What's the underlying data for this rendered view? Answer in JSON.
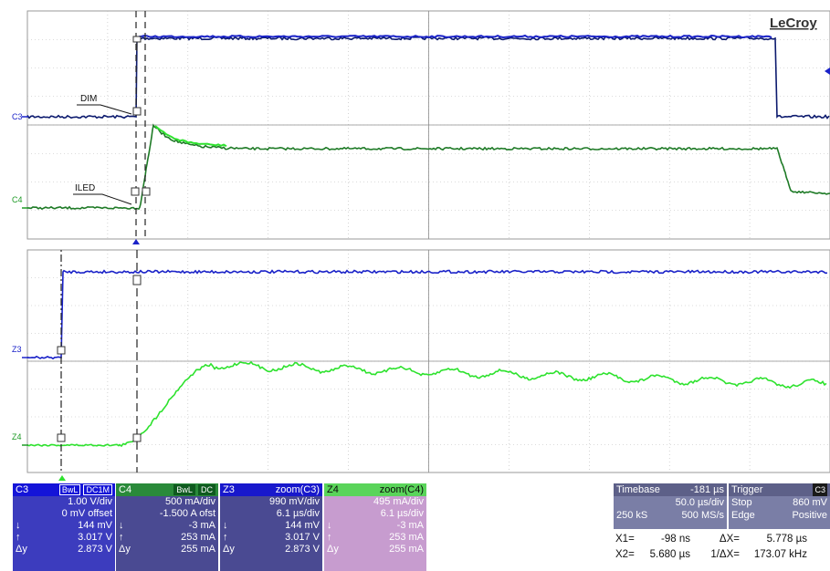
{
  "brand": "LeCroy",
  "colors": {
    "ch3": "#1a22c8",
    "ch3_dark": "#0c1a6e",
    "ch4": "#1e7a26",
    "ch4_light": "#2ee22e",
    "grid": "#b8b8b8"
  },
  "traces": {
    "c3_label": "C3",
    "c4_label": "C4",
    "z3_label": "Z3",
    "z4_label": "Z4",
    "dim_label": "DIM",
    "iled_label": "ILED"
  },
  "channels": [
    {
      "name": "C3",
      "badges": [
        "BwL",
        "DC1M"
      ],
      "scale": "1.00 V/div",
      "offset": "0 mV offset",
      "rows": [
        {
          "sym": "↓",
          "val": "144 mV"
        },
        {
          "sym": "↑",
          "val": "3.017 V"
        },
        {
          "sym": "Δy",
          "val": "2.873 V"
        }
      ]
    },
    {
      "name": "C4",
      "badges": [
        "BwL",
        "DC"
      ],
      "scale": "500 mA/div",
      "offset": "-1.500 A ofst",
      "rows": [
        {
          "sym": "↓",
          "val": "-3 mA"
        },
        {
          "sym": "↑",
          "val": "253 mA"
        },
        {
          "sym": "Δy",
          "val": "255 mA"
        }
      ]
    },
    {
      "name": "Z3",
      "zoom": "zoom(C3)",
      "scale": "990 mV/div",
      "offset": "6.1 µs/div",
      "rows": [
        {
          "sym": "↓",
          "val": "144 mV"
        },
        {
          "sym": "↑",
          "val": "3.017 V"
        },
        {
          "sym": "Δy",
          "val": "2.873 V"
        }
      ]
    },
    {
      "name": "Z4",
      "zoom": "zoom(C4)",
      "scale": "495 mA/div",
      "offset": "6.1 µs/div",
      "rows": [
        {
          "sym": "↓",
          "val": "-3 mA"
        },
        {
          "sym": "↑",
          "val": "253 mA"
        },
        {
          "sym": "Δy",
          "val": "255 mA"
        }
      ]
    }
  ],
  "timebase": {
    "label": "Timebase",
    "delay": "-181 µs",
    "per_div": "50.0 µs/div",
    "samples": "250 kS",
    "rate": "500 MS/s"
  },
  "trigger": {
    "label": "Trigger",
    "source": "C3",
    "mode": "Stop",
    "level": "860 mV",
    "type": "Edge",
    "slope": "Positive"
  },
  "cursors": {
    "x1_label": "X1=",
    "x1": "-98 ns",
    "dx_label": "ΔX=",
    "dx": "5.778 µs",
    "x2_label": "X2=",
    "x2": "5.680 µs",
    "inv_label": "1/ΔX=",
    "inv": "173.07 kHz"
  }
}
